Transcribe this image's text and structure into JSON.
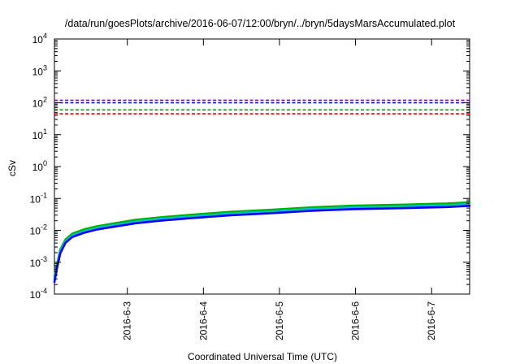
{
  "chart_data": {
    "type": "line",
    "title": "/data/run/goesPlots/archive/2016-06-07/12:00/bryn/../bryn/5daysMarsAccumulated.plot",
    "xlabel": "Coordinated Universal Time (UTC)",
    "ylabel": "cSv",
    "yscale": "log",
    "ylim": [
      0.0001,
      10000
    ],
    "xlim": [
      "2016-06-02 01:00",
      "2016-06-07 12:00"
    ],
    "grid": false,
    "legend": "none",
    "y_ticks": [
      {
        "base": "10",
        "exp": "-4"
      },
      {
        "base": "10",
        "exp": "-3"
      },
      {
        "base": "10",
        "exp": "-2"
      },
      {
        "base": "10",
        "exp": "-1"
      },
      {
        "base": "10",
        "exp": "0"
      },
      {
        "base": "10",
        "exp": "1"
      },
      {
        "base": "10",
        "exp": "2"
      },
      {
        "base": "10",
        "exp": "3"
      },
      {
        "base": "10",
        "exp": "4"
      }
    ],
    "x_ticks": [
      {
        "label": "2016-6-3",
        "time": "2016-06-03 00:00"
      },
      {
        "label": "2016-6-4",
        "time": "2016-06-04 00:00"
      },
      {
        "label": "2016-6-5",
        "time": "2016-06-05 00:00"
      },
      {
        "label": "2016-6-6",
        "time": "2016-06-06 00:00"
      },
      {
        "label": "2016-6-7",
        "time": "2016-06-07 00:00"
      }
    ],
    "threshold_lines": [
      {
        "color": "#9400d3",
        "y": 120
      },
      {
        "color": "#0000cd",
        "y": 100
      },
      {
        "color": "#00b000",
        "y": 60
      },
      {
        "color": "#ff0000",
        "y": 45
      }
    ],
    "series": [
      {
        "color": "#00b000",
        "x": [
          "2016-06-02 01:00",
          "2016-06-02 01:45",
          "2016-06-02 02:50",
          "2016-06-02 04:30",
          "2016-06-02 06:40",
          "2016-06-02 10:20",
          "2016-06-02 14:40",
          "2016-06-02 20:10",
          "2016-06-03 02:35",
          "2016-06-03 10:30",
          "2016-06-03 19:50",
          "2016-06-04 08:35",
          "2016-06-04 21:20",
          "2016-06-05 10:10",
          "2016-06-05 22:55",
          "2016-06-06 14:30",
          "2016-06-07 04:55",
          "2016-06-07 12:00"
        ],
        "y": [
          0.00035,
          0.0008,
          0.0025,
          0.0052,
          0.0079,
          0.0107,
          0.0136,
          0.0168,
          0.0214,
          0.0257,
          0.0307,
          0.0381,
          0.0441,
          0.0527,
          0.0591,
          0.064,
          0.0697,
          0.0758
        ]
      },
      {
        "color": "#00c0c0",
        "x": [
          "2016-06-02 01:00",
          "2016-06-02 01:45",
          "2016-06-02 02:50",
          "2016-06-02 04:30",
          "2016-06-02 06:40",
          "2016-06-02 10:20",
          "2016-06-02 14:40",
          "2016-06-02 20:10",
          "2016-06-03 02:35",
          "2016-06-03 10:30",
          "2016-06-03 19:50",
          "2016-06-04 08:35",
          "2016-06-04 21:20",
          "2016-06-05 10:10",
          "2016-06-05 22:55",
          "2016-06-06 14:30",
          "2016-06-07 04:55",
          "2016-06-07 12:00"
        ],
        "y": [
          0.0003,
          0.0007,
          0.0022,
          0.0046,
          0.007,
          0.0095,
          0.0121,
          0.015,
          0.019,
          0.023,
          0.0273,
          0.0338,
          0.0392,
          0.047,
          0.0527,
          0.0567,
          0.0617,
          0.0675
        ]
      },
      {
        "color": "#0000ff",
        "x": [
          "2016-06-02 01:00",
          "2016-06-02 01:45",
          "2016-06-02 02:50",
          "2016-06-02 04:30",
          "2016-06-02 06:40",
          "2016-06-02 10:20",
          "2016-06-02 14:40",
          "2016-06-02 20:10",
          "2016-06-03 02:35",
          "2016-06-03 10:30",
          "2016-06-03 19:50",
          "2016-06-04 08:35",
          "2016-06-04 21:20",
          "2016-06-05 10:10",
          "2016-06-05 22:55",
          "2016-06-06 14:30",
          "2016-06-07 04:55",
          "2016-06-07 12:00"
        ],
        "y": [
          0.00024,
          0.0006,
          0.0019,
          0.0041,
          0.0062,
          0.0084,
          0.0107,
          0.0132,
          0.0167,
          0.0201,
          0.024,
          0.0297,
          0.0345,
          0.0412,
          0.0462,
          0.0497,
          0.054,
          0.0588
        ]
      }
    ]
  }
}
